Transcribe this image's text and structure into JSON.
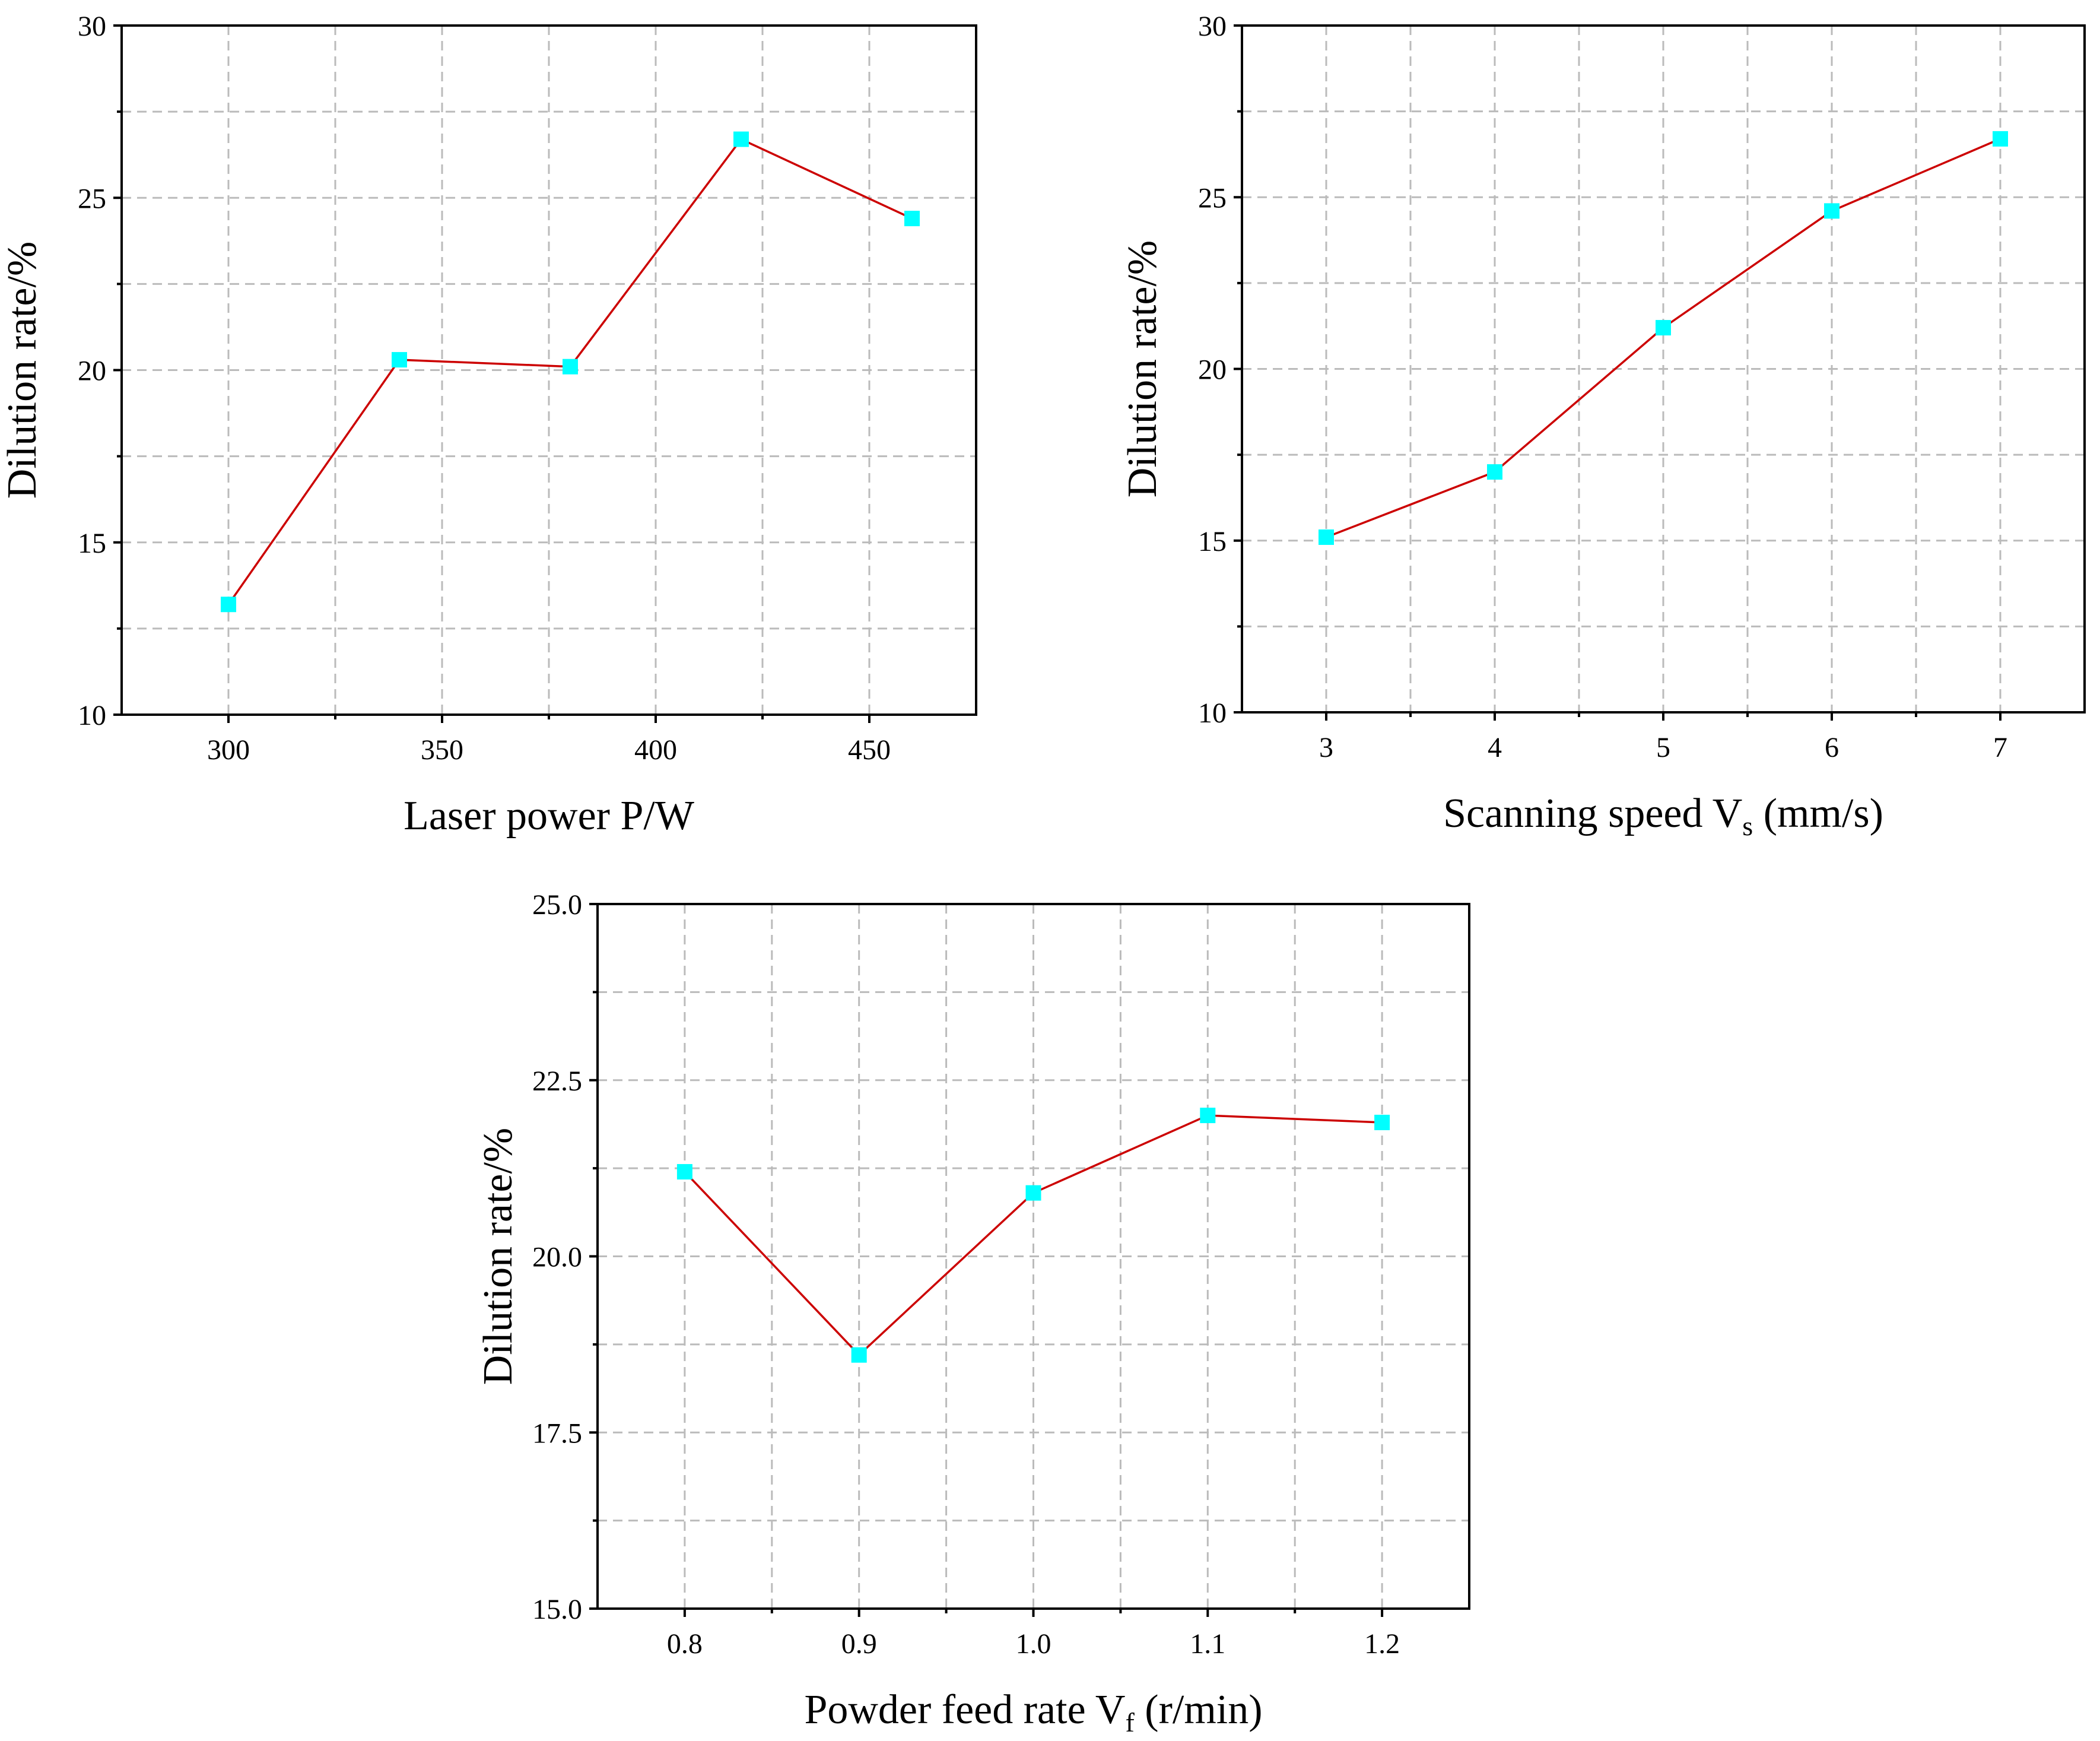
{
  "colors": {
    "line": "#cc0000",
    "marker": "#00ffff",
    "grid": "#bbbbbb",
    "axis": "#000000"
  },
  "chart_data": [
    {
      "type": "line",
      "x": [
        300,
        340,
        380,
        420,
        460
      ],
      "series": [
        {
          "values": [
            13.2,
            20.3,
            20.1,
            26.7,
            24.4
          ]
        }
      ],
      "xlabel": {
        "text": "Laser power P/W",
        "base": "Laser power P/W",
        "sub": "",
        "rest": ""
      },
      "ylabel": "Dilution rate/%",
      "xlim": [
        275,
        475
      ],
      "ylim": [
        10,
        30
      ],
      "xticks": [
        300,
        350,
        400,
        450
      ],
      "xtick_labels": [
        "300",
        "350",
        "400",
        "450"
      ],
      "yticks": [
        10,
        15,
        20,
        25,
        30
      ],
      "ytick_labels": [
        "10",
        "15",
        "20",
        "25",
        "30"
      ],
      "grid": true,
      "marker": "square"
    },
    {
      "type": "line",
      "x": [
        3,
        4,
        5,
        6,
        7
      ],
      "series": [
        {
          "values": [
            15.1,
            17.0,
            21.2,
            24.6,
            26.7
          ]
        }
      ],
      "xlabel": {
        "text": "Scanning speed Vs (mm/s)",
        "base": "Scanning speed V",
        "sub": "s",
        "rest": " (mm/s)"
      },
      "ylabel": "Dilution rate/%",
      "xlim": [
        2.5,
        7.5
      ],
      "ylim": [
        10,
        30
      ],
      "xticks": [
        3,
        4,
        5,
        6,
        7
      ],
      "xtick_labels": [
        "3",
        "4",
        "5",
        "6",
        "7"
      ],
      "yticks": [
        10,
        15,
        20,
        25,
        30
      ],
      "ytick_labels": [
        "10",
        "15",
        "20",
        "25",
        "30"
      ],
      "grid": true,
      "marker": "square"
    },
    {
      "type": "line",
      "x": [
        0.8,
        0.9,
        1.0,
        1.1,
        1.2
      ],
      "series": [
        {
          "values": [
            21.2,
            18.6,
            20.9,
            22.0,
            21.9
          ]
        }
      ],
      "xlabel": {
        "text": "Powder feed rate Vf (r/min)",
        "base": "Powder feed rate V",
        "sub": "f",
        "rest": " (r/min)"
      },
      "ylabel": "Dilution rate/%",
      "xlim": [
        0.75,
        1.25
      ],
      "ylim": [
        15.0,
        25.0
      ],
      "xticks": [
        0.8,
        0.9,
        1.0,
        1.1,
        1.2
      ],
      "xtick_labels": [
        "0.8",
        "0.9",
        "1.0",
        "1.1",
        "1.2"
      ],
      "yticks": [
        15.0,
        17.5,
        20.0,
        22.5,
        25.0
      ],
      "ytick_labels": [
        "15.0",
        "17.5",
        "20.0",
        "22.5",
        "25.0"
      ],
      "grid": true,
      "marker": "square"
    }
  ]
}
